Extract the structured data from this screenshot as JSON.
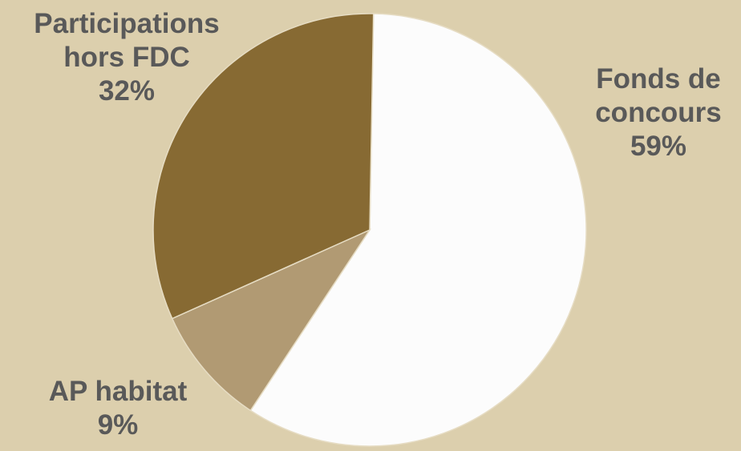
{
  "chart_data": {
    "type": "pie",
    "title": "",
    "start_angle_deg": 1,
    "direction": "clockwise",
    "slices": [
      {
        "label_lines": [
          "Fonds de",
          "concours"
        ],
        "percent_label": "59%",
        "value": 59,
        "color": "#fcfcfc"
      },
      {
        "label_lines": [
          "AP habitat"
        ],
        "percent_label": "9%",
        "value": 9,
        "color": "#b19a73"
      },
      {
        "label_lines": [
          "Participations",
          "hors FDC"
        ],
        "percent_label": "32%",
        "value": 32,
        "color": "#876a33"
      }
    ],
    "legend": "none"
  },
  "colors": {
    "background": "#dccfad",
    "slice_border": "#e6dcc3",
    "label_text": "#595959"
  }
}
